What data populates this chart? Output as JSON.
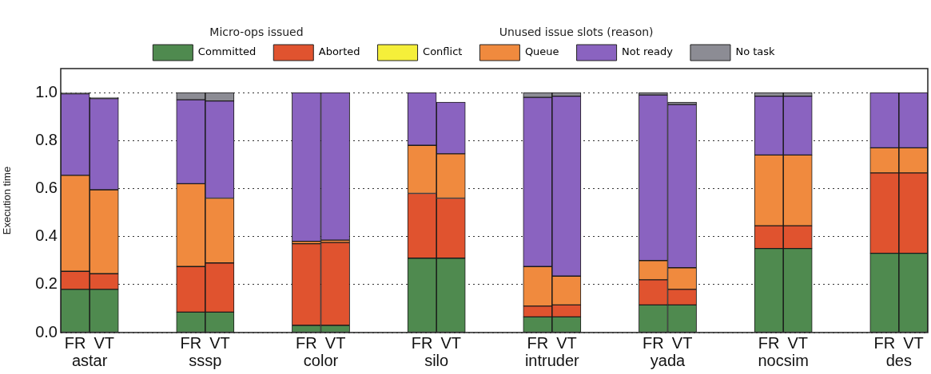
{
  "chart_data": {
    "type": "bar",
    "stacked": true,
    "ylabel": "Execution time",
    "categories": [
      "FR",
      "VT",
      "FR",
      "VT",
      "FR",
      "VT",
      "FR",
      "VT",
      "FR",
      "VT",
      "FR",
      "VT",
      "FR",
      "VT",
      "FR",
      "VT"
    ],
    "annotations": [
      "Micro-ops issued",
      "Unused issue slots (reason)",
      "astar",
      "sssp",
      "color",
      "silo",
      "intruder",
      "yada",
      "nocsim",
      "des"
    ],
    "series": [
      {
        "name": "Committed",
        "color": "#4f8a4f",
        "values": [
          0.18,
          0.18,
          0.085,
          0.085,
          0.03,
          0.03,
          0.31,
          0.31,
          0.065,
          0.065,
          0.115,
          0.115,
          0.35,
          0.35,
          0.33,
          0.33
        ]
      },
      {
        "name": "Aborted",
        "color": "#e0532f",
        "values": [
          0.075,
          0.065,
          0.19,
          0.205,
          0.34,
          0.345,
          0.27,
          0.25,
          0.045,
          0.05,
          0.105,
          0.065,
          0.095,
          0.095,
          0.335,
          0.335
        ]
      },
      {
        "name": "Conflict",
        "color": "#f5ef3a",
        "values": [
          0,
          0,
          0,
          0,
          0,
          0,
          0,
          0,
          0,
          0,
          0,
          0,
          0,
          0,
          0,
          0
        ]
      },
      {
        "name": "Queue",
        "color": "#f08a3e",
        "values": [
          0.4,
          0.35,
          0.345,
          0.27,
          0.01,
          0.01,
          0.2,
          0.185,
          0.165,
          0.12,
          0.08,
          0.09,
          0.295,
          0.295,
          0.105,
          0.105
        ]
      },
      {
        "name": "Not ready",
        "color": "#8a63c0",
        "values": [
          0.34,
          0.38,
          0.35,
          0.405,
          0.62,
          0.615,
          0.22,
          0.215,
          0.705,
          0.75,
          0.69,
          0.68,
          0.245,
          0.245,
          0.23,
          0.23
        ]
      },
      {
        "name": "No task",
        "color": "#8c8c94",
        "values": [
          0.005,
          0.005,
          0.03,
          0.035,
          0,
          0,
          0,
          0,
          0.02,
          0.015,
          0.01,
          0.01,
          0.015,
          0.015,
          0,
          0
        ]
      }
    ],
    "ylim": [
      0,
      1.1
    ],
    "yticks": [
      {
        "value": 0,
        "label": "0.0"
      },
      {
        "value": 0.2,
        "label": "0.2"
      },
      {
        "value": 0.4,
        "label": "0.4"
      },
      {
        "value": 0.6,
        "label": "0.6"
      },
      {
        "value": 0.8,
        "label": "0.8"
      },
      {
        "value": 1,
        "label": "1.0"
      }
    ],
    "grid": "y",
    "legend": "top"
  }
}
